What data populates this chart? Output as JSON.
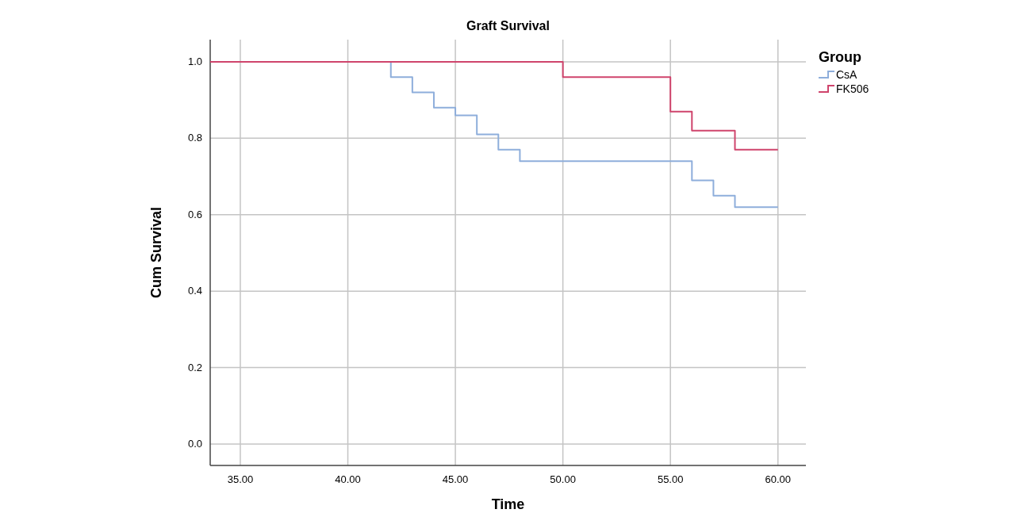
{
  "chart_data": {
    "type": "step",
    "title": "Graft Survival",
    "xlabel": "Time",
    "ylabel": "Cum Survival",
    "legend_title": "Group",
    "legend": "right",
    "grid": true,
    "xlim": [
      33.6,
      61.3
    ],
    "ylim": [
      -0.056,
      1.058
    ],
    "xticks": [
      {
        "value": 35,
        "label": "35.00"
      },
      {
        "value": 40,
        "label": "40.00"
      },
      {
        "value": 45,
        "label": "45.00"
      },
      {
        "value": 50,
        "label": "50.00"
      },
      {
        "value": 55,
        "label": "55.00"
      },
      {
        "value": 60,
        "label": "60.00"
      }
    ],
    "yticks": [
      {
        "value": 0,
        "label": "0.0"
      },
      {
        "value": 0.2,
        "label": "0.2"
      },
      {
        "value": 0.4,
        "label": "0.4"
      },
      {
        "value": 0.6,
        "label": "0.6"
      },
      {
        "value": 0.8,
        "label": "0.8"
      },
      {
        "value": 1,
        "label": "1.0"
      }
    ],
    "series": [
      {
        "name": "CsA",
        "color": "#8eaedb",
        "x": [
          33.6,
          42,
          43,
          44,
          45,
          46,
          47,
          48,
          56,
          57,
          58,
          60
        ],
        "values": [
          1,
          0.96,
          0.92,
          0.88,
          0.86,
          0.81,
          0.77,
          0.74,
          0.69,
          0.65,
          0.62,
          0.62
        ]
      },
      {
        "name": "FK506",
        "color": "#cf446c",
        "x": [
          33.6,
          50,
          55,
          56,
          58,
          60
        ],
        "values": [
          1,
          0.96,
          0.87,
          0.82,
          0.77,
          0.77
        ]
      }
    ]
  }
}
